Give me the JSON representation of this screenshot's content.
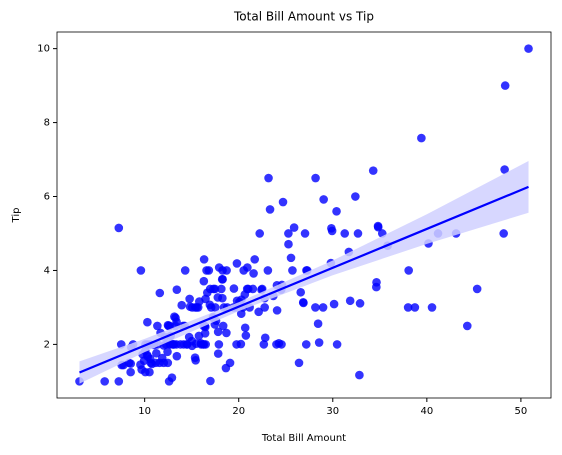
{
  "chart_data": {
    "type": "scatter",
    "title": "Total Bill Amount vs Tip",
    "x_label": "Total Bill Amount",
    "y_label": "Tip",
    "color": "#0000ff",
    "x": [
      50.81,
      48.33,
      48.27,
      48.17,
      45.35,
      44.3,
      43.11,
      41.19,
      40.55,
      39.42,
      40.17,
      38.73,
      38.07,
      38.01,
      35.83,
      35.26,
      34.81,
      34.83,
      34.65,
      34.63,
      34.3,
      32.9,
      32.83,
      32.68,
      32.4,
      31.85,
      31.71,
      31.27,
      30.46,
      30.4,
      30.14,
      29.93,
      29.85,
      29.8,
      29.03,
      28.97,
      28.55,
      28.44,
      28.17,
      28.15,
      27.28,
      27.2,
      27.18,
      27.05,
      26.88,
      26.86,
      26.59,
      26.41,
      25.89,
      25.71,
      25.56,
      25.28,
      25.29,
      24.71,
      24.55,
      24.59,
      24.52,
      24.27,
      24.08,
      24.06,
      24.01,
      23.68,
      23.33,
      23.17,
      23.1,
      22.82,
      22.76,
      22.75,
      22.67,
      22.49,
      22.42,
      22.23,
      22.12,
      21.7,
      21.58,
      21.5,
      21.16,
      21.01,
      20.92,
      20.9,
      20.76,
      20.69,
      20.65,
      20.53,
      20.45,
      20.29,
      20.27,
      20.23,
      20.08,
      19.82,
      19.81,
      19.77,
      19.65,
      19.49,
      19.44,
      19.08,
      18.78,
      18.71,
      18.69,
      18.64,
      18.43,
      18.35,
      18.29,
      18.28,
      18.26,
      18.24,
      18.15,
      17.92,
      17.89,
      17.81,
      17.82,
      17.78,
      17.59,
      17.51,
      17.47,
      17.46,
      17.31,
      17.29,
      17.26,
      17.07,
      16.99,
      16.97,
      16.93,
      16.82,
      16.66,
      16.58,
      16.49,
      16.47,
      16.45,
      16.43,
      16.4,
      16.32,
      16.31,
      16.29,
      16.27,
      16.21,
      16,
      15.98,
      15.81,
      15.77,
      15.69,
      15.53,
      15.48,
      15.42,
      15.38,
      15.36,
      15.06,
      15.04,
      15.01,
      14.83,
      14.78,
      14.73,
      14.52,
      14.48,
      14.31,
      14.26,
      14.15,
      14.07,
      13.94,
      13.81,
      13.42,
      13.42,
      13.39,
      13.37,
      13.28,
      13.27,
      13.16,
      13.13,
      13.03,
      13,
      12.9,
      12.76,
      12.74,
      12.69,
      12.66,
      12.6,
      12.54,
      12.48,
      12.46,
      12.43,
      12.26,
      12.16,
      12.03,
      12.02,
      11.87,
      11.69,
      11.61,
      11.59,
      11.38,
      11.35,
      11.24,
      11.17,
      11.02,
      10.77,
      10.65,
      10.63,
      10.59,
      10.51,
      10.34,
      10.33,
      10.29,
      10.27,
      10.09,
      10.07,
      10.07,
      9.94,
      9.78,
      9.68,
      9.6,
      9.55,
      8.77,
      8.58,
      8.52,
      8.51,
      8.35,
      7.74,
      7.56,
      7.51,
      7.25,
      7.25,
      5.75,
      3.07
    ],
    "y": [
      10,
      9,
      6.73,
      5,
      3.5,
      2.5,
      5,
      5,
      3,
      7.58,
      4.73,
      3,
      4,
      3,
      4.67,
      5,
      5.2,
      5.17,
      3.68,
      3.55,
      6.7,
      3.11,
      1.17,
      5,
      6,
      3.18,
      4.5,
      5,
      2,
      5.6,
      3.09,
      5.07,
      5.14,
      4.2,
      5.92,
      3,
      2.05,
      2.56,
      6.5,
      3,
      4,
      4,
      2,
      5,
      3.12,
      3.14,
      3.41,
      1.5,
      5.16,
      4,
      4.34,
      5,
      4.71,
      5.85,
      2,
      3.61,
      3.48,
      2.03,
      2.92,
      3.6,
      2,
      3.31,
      5.65,
      6.5,
      4,
      2.18,
      3,
      3.25,
      2,
      3.5,
      3.48,
      5,
      2.88,
      4.3,
      3.92,
      3.5,
      3,
      3.5,
      4.08,
      3.5,
      2.24,
      2.45,
      3.35,
      4,
      3,
      3.21,
      2.83,
      2.01,
      3.15,
      3.18,
      4.19,
      2,
      3,
      3.51,
      3,
      1.5,
      3,
      4,
      2.31,
      1.36,
      3,
      2.5,
      3.76,
      4,
      3.25,
      3.76,
      3.5,
      4.08,
      2,
      2.34,
      1.75,
      3.27,
      2.64,
      3,
      3.5,
      2.54,
      3.5,
      2.71,
      2.74,
      3,
      1.01,
      3.5,
      3.07,
      4,
      3.4,
      4,
      2,
      3.23,
      2.47,
      2.3,
      2.5,
      4.3,
      2,
      3.71,
      2.5,
      2,
      2,
      2.03,
      3.16,
      2.23,
      3,
      3,
      2.02,
      1.57,
      3,
      1.64,
      3,
      1.96,
      2.09,
      3.02,
      3.23,
      2.2,
      2,
      2,
      4,
      2.5,
      2,
      2.5,
      3.06,
      2,
      3.48,
      1.68,
      2.61,
      2,
      2.72,
      2.5,
      2.75,
      2,
      2,
      2,
      1.1,
      2.23,
      2.01,
      2,
      2.5,
      1,
      2.5,
      2.52,
      1.5,
      1.8,
      2,
      2.2,
      1.5,
      1.97,
      1.63,
      2.31,
      3.39,
      1.5,
      2,
      2.5,
      1.76,
      1.5,
      1.98,
      1.47,
      1.5,
      2,
      1.61,
      1.25,
      2,
      1.67,
      2.6,
      1.71,
      2,
      1.83,
      1.25,
      1.56,
      1.73,
      1.32,
      4,
      1.45,
      2,
      1.92,
      1.48,
      1.25,
      1.5,
      1.44,
      1.44,
      2,
      5.15,
      1,
      1,
      1
    ],
    "regression": {
      "x": [
        3.07,
        50.81
      ],
      "y": [
        1.24,
        6.26
      ],
      "color": "#0000ff"
    },
    "confidence_band": {
      "x": [
        3.07,
        10,
        20,
        30,
        40,
        50.81
      ],
      "lower": [
        0.94,
        1.79,
        2.9,
        3.87,
        4.72,
        5.56
      ],
      "upper": [
        1.54,
        2.15,
        3.14,
        4.27,
        5.52,
        6.96
      ],
      "color": "#d0d0ff"
    },
    "xlim": [
      0.68,
      53.2
    ],
    "ylim": [
      0.55,
      10.45
    ],
    "xticks": [
      10,
      20,
      30,
      40,
      50
    ],
    "yticks": [
      2,
      4,
      6,
      8,
      10
    ]
  }
}
